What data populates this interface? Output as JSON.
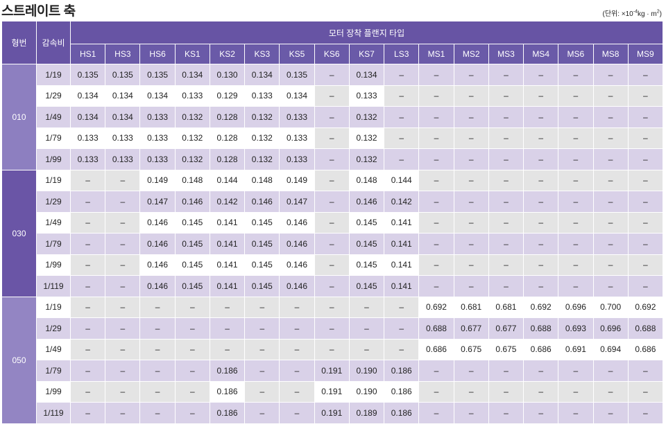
{
  "title": "스트레이트 축",
  "unit": {
    "prefix": "(단위: ×10",
    "exp": "-4",
    "mid": "kg · m",
    "exp2": "2",
    "suffix": ")"
  },
  "header": {
    "model": "형번",
    "ratio": "감속비",
    "flange_group": "모터 장착 플랜지 타입",
    "flanges": [
      "HS1",
      "HS3",
      "HS6",
      "KS1",
      "KS2",
      "KS3",
      "KS5",
      "KS6",
      "KS7",
      "LS3",
      "MS1",
      "MS2",
      "MS3",
      "MS4",
      "MS6",
      "MS8",
      "MS9"
    ]
  },
  "groups": [
    {
      "model": "010",
      "rows": [
        {
          "ratio": "1/19",
          "values": [
            "0.135",
            "0.135",
            "0.135",
            "0.134",
            "0.130",
            "0.134",
            "0.135",
            "–",
            "0.134",
            "–",
            "–",
            "–",
            "–",
            "–",
            "–",
            "–",
            "–"
          ]
        },
        {
          "ratio": "1/29",
          "values": [
            "0.134",
            "0.134",
            "0.134",
            "0.133",
            "0.129",
            "0.133",
            "0.134",
            "–",
            "0.133",
            "–",
            "–",
            "–",
            "–",
            "–",
            "–",
            "–",
            "–"
          ]
        },
        {
          "ratio": "1/49",
          "values": [
            "0.134",
            "0.134",
            "0.133",
            "0.132",
            "0.128",
            "0.132",
            "0.133",
            "–",
            "0.132",
            "–",
            "–",
            "–",
            "–",
            "–",
            "–",
            "–",
            "–"
          ]
        },
        {
          "ratio": "1/79",
          "values": [
            "0.133",
            "0.133",
            "0.133",
            "0.132",
            "0.128",
            "0.132",
            "0.133",
            "–",
            "0.132",
            "–",
            "–",
            "–",
            "–",
            "–",
            "–",
            "–",
            "–"
          ]
        },
        {
          "ratio": "1/99",
          "values": [
            "0.133",
            "0.133",
            "0.133",
            "0.132",
            "0.128",
            "0.132",
            "0.133",
            "–",
            "0.132",
            "–",
            "–",
            "–",
            "–",
            "–",
            "–",
            "–",
            "–"
          ]
        }
      ]
    },
    {
      "model": "030",
      "rows": [
        {
          "ratio": "1/19",
          "values": [
            "–",
            "–",
            "0.149",
            "0.148",
            "0.144",
            "0.148",
            "0.149",
            "–",
            "0.148",
            "0.144",
            "–",
            "–",
            "–",
            "–",
            "–",
            "–",
            "–"
          ]
        },
        {
          "ratio": "1/29",
          "values": [
            "–",
            "–",
            "0.147",
            "0.146",
            "0.142",
            "0.146",
            "0.147",
            "–",
            "0.146",
            "0.142",
            "–",
            "–",
            "–",
            "–",
            "–",
            "–",
            "–"
          ]
        },
        {
          "ratio": "1/49",
          "values": [
            "–",
            "–",
            "0.146",
            "0.145",
            "0.141",
            "0.145",
            "0.146",
            "–",
            "0.145",
            "0.141",
            "–",
            "–",
            "–",
            "–",
            "–",
            "–",
            "–"
          ]
        },
        {
          "ratio": "1/79",
          "values": [
            "–",
            "–",
            "0.146",
            "0.145",
            "0.141",
            "0.145",
            "0.146",
            "–",
            "0.145",
            "0.141",
            "–",
            "–",
            "–",
            "–",
            "–",
            "–",
            "–"
          ]
        },
        {
          "ratio": "1/99",
          "values": [
            "–",
            "–",
            "0.146",
            "0.145",
            "0.141",
            "0.145",
            "0.146",
            "–",
            "0.145",
            "0.141",
            "–",
            "–",
            "–",
            "–",
            "–",
            "–",
            "–"
          ]
        },
        {
          "ratio": "1/119",
          "values": [
            "–",
            "–",
            "0.146",
            "0.145",
            "0.141",
            "0.145",
            "0.146",
            "–",
            "0.145",
            "0.141",
            "–",
            "–",
            "–",
            "–",
            "–",
            "–",
            "–"
          ]
        }
      ]
    },
    {
      "model": "050",
      "rows": [
        {
          "ratio": "1/19",
          "values": [
            "–",
            "–",
            "–",
            "–",
            "–",
            "–",
            "–",
            "–",
            "–",
            "–",
            "0.692",
            "0.681",
            "0.681",
            "0.692",
            "0.696",
            "0.700",
            "0.692"
          ]
        },
        {
          "ratio": "1/29",
          "values": [
            "–",
            "–",
            "–",
            "–",
            "–",
            "–",
            "–",
            "–",
            "–",
            "–",
            "0.688",
            "0.677",
            "0.677",
            "0.688",
            "0.693",
            "0.696",
            "0.688"
          ]
        },
        {
          "ratio": "1/49",
          "values": [
            "–",
            "–",
            "–",
            "–",
            "–",
            "–",
            "–",
            "–",
            "–",
            "–",
            "0.686",
            "0.675",
            "0.675",
            "0.686",
            "0.691",
            "0.694",
            "0.686"
          ]
        },
        {
          "ratio": "1/79",
          "values": [
            "–",
            "–",
            "–",
            "–",
            "0.186",
            "–",
            "–",
            "0.191",
            "0.190",
            "0.186",
            "–",
            "–",
            "–",
            "–",
            "–",
            "–",
            "–"
          ]
        },
        {
          "ratio": "1/99",
          "values": [
            "–",
            "–",
            "–",
            "–",
            "0.186",
            "–",
            "–",
            "0.191",
            "0.190",
            "0.186",
            "–",
            "–",
            "–",
            "–",
            "–",
            "–",
            "–"
          ]
        },
        {
          "ratio": "1/119",
          "values": [
            "–",
            "–",
            "–",
            "–",
            "0.186",
            "–",
            "–",
            "0.191",
            "0.189",
            "0.186",
            "–",
            "–",
            "–",
            "–",
            "–",
            "–",
            "–"
          ]
        }
      ]
    }
  ],
  "colors": {
    "header": "#6754a4",
    "stripe": "#d9d1e8",
    "gray": "#e4e4e4"
  }
}
